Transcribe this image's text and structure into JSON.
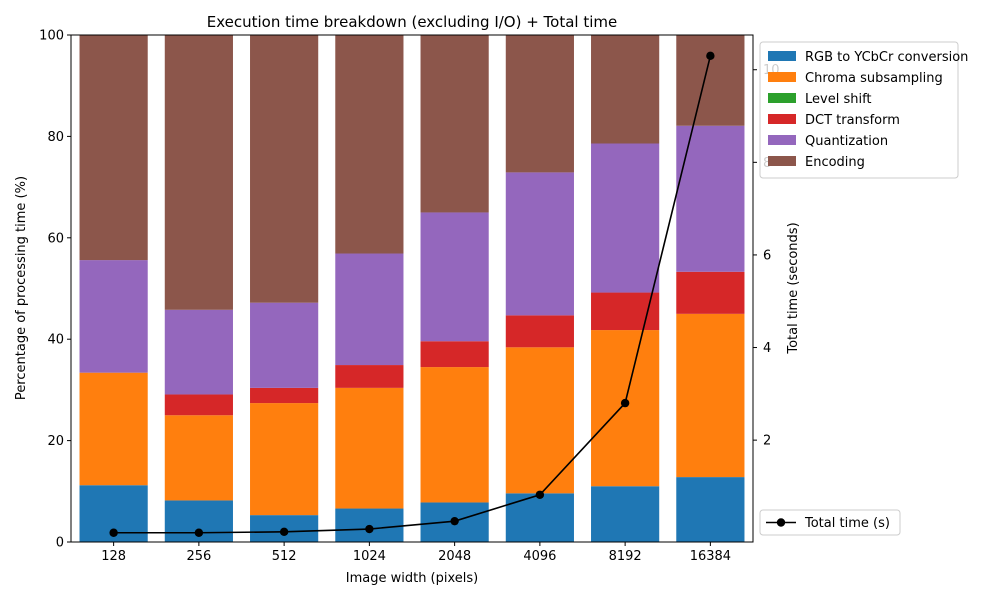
{
  "chart_data": {
    "type": "bar",
    "stacked": true,
    "title": "Execution time breakdown (excluding I/O) + Total time",
    "xlabel": "Image width (pixels)",
    "ylabel": "Percentage of processing time (%)",
    "y2label": "Total time (seconds)",
    "categories": [
      "128",
      "256",
      "512",
      "1024",
      "2048",
      "4096",
      "8192",
      "16384"
    ],
    "ylim": [
      0,
      100
    ],
    "yticks": [
      0,
      20,
      40,
      60,
      80,
      100
    ],
    "y2lim": [
      -0.2,
      10.75
    ],
    "y2ticks": [
      2,
      4,
      6,
      8,
      10
    ],
    "legend_position": "upper right, outside plot",
    "series": [
      {
        "name": "RGB to YCbCr conversion",
        "color": "#1f77b4",
        "values": [
          11.2,
          8.2,
          5.3,
          6.6,
          7.8,
          9.6,
          11.0,
          12.8
        ]
      },
      {
        "name": "Chroma subsampling",
        "color": "#ff7f0e",
        "values": [
          22.2,
          16.8,
          22.1,
          23.8,
          26.7,
          28.8,
          30.8,
          32.2
        ]
      },
      {
        "name": "Level shift",
        "color": "#2ca02c",
        "values": [
          0.0,
          0.0,
          0.0,
          0.0,
          0.0,
          0.0,
          0.0,
          0.0
        ]
      },
      {
        "name": "DCT transform",
        "color": "#d62728",
        "values": [
          0.0,
          4.1,
          3.0,
          4.5,
          5.1,
          6.3,
          7.4,
          8.3
        ]
      },
      {
        "name": "Quantization",
        "color": "#9467bd",
        "values": [
          22.2,
          16.7,
          16.8,
          22.0,
          25.4,
          28.2,
          29.4,
          28.8
        ]
      },
      {
        "name": "Encoding",
        "color": "#8c564b",
        "values": [
          44.4,
          54.2,
          52.8,
          43.1,
          35.0,
          27.1,
          21.4,
          17.9
        ]
      }
    ],
    "line_series": {
      "name": "Total time (s)",
      "color": "#000000",
      "axis": "right",
      "values": [
        0.0,
        0.0,
        0.02,
        0.08,
        0.25,
        0.82,
        2.8,
        10.3
      ]
    }
  }
}
